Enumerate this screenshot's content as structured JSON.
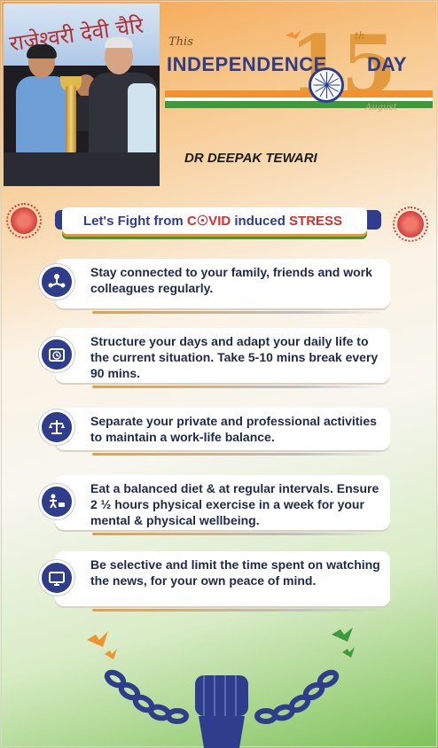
{
  "photo": {
    "banner_text": "राजेश्वरी देवी चैरि"
  },
  "header": {
    "this_label": "This",
    "independence": "INDEPENDENCE",
    "number": "15",
    "ordinal": "th",
    "day": "DAY",
    "month": "August"
  },
  "author": "DR DEEPAK TEWARI",
  "fight_banner": {
    "prefix": "Let's Fight from ",
    "covid": "C☉VID",
    "middle": " induced ",
    "stress": "STRESS"
  },
  "tips": [
    {
      "icon": "people-network-icon",
      "text": "Stay connected to your family, friends and work colleagues regularly."
    },
    {
      "icon": "clock-calendar-icon",
      "text": "Structure your days and adapt your daily life to the current situation. Take 5-10 mins break every 90 mins."
    },
    {
      "icon": "balance-scale-icon",
      "text": "Separate your private and professional activities to maintain a work-life balance."
    },
    {
      "icon": "exercise-diet-icon",
      "text": "Eat a balanced diet & at regular intervals. Ensure 2 ½ hours physical exercise in a week for your mental & physical wellbeing."
    },
    {
      "icon": "tv-news-icon",
      "text": "Be selective and limit the time spent on watching the news, for your own peace of mind."
    }
  ],
  "colors": {
    "saffron": "#f2922f",
    "green": "#3c9a3a",
    "navy": "#2e3d8c",
    "red": "#d43030"
  }
}
